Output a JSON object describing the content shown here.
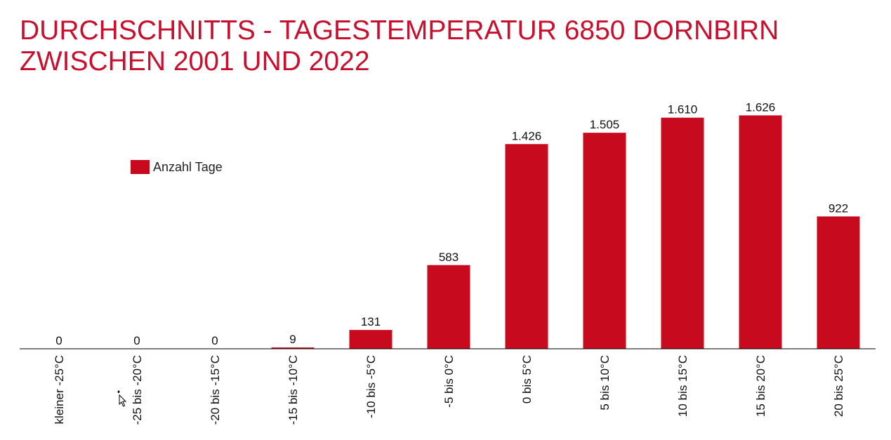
{
  "title": {
    "line1": "DURCHSCHNITTS - TAGESTEMPERATUR 6850 DORNBIRN",
    "line2": "ZWISCHEN 2001 UND 2022"
  },
  "colors": {
    "accent": "#c8102e",
    "bar": "#c80a1e",
    "axis": "#000000",
    "text": "#111111"
  },
  "chart_data": {
    "type": "bar",
    "title": "DURCHSCHNITTS - TAGESTEMPERATUR 6850 DORNBIRN ZWISCHEN 2001 UND 2022",
    "categories": [
      "kleiner -25°C",
      "-25 bis -20°C",
      "-20 bis -15°C",
      "-15 bis -10°C",
      "-10 bis -5°C",
      "-5 bis 0°C",
      "0 bis 5°C",
      "5 bis 10°C",
      "10 bis 15°C",
      "15 bis 20°C",
      "20 bis 25°C"
    ],
    "series": [
      {
        "name": "Anzahl Tage",
        "values": [
          0,
          0,
          0,
          9,
          131,
          583,
          1426,
          1505,
          1610,
          1626,
          922
        ]
      }
    ],
    "data_labels": [
      "0",
      "0",
      "0",
      "9",
      "131",
      "583",
      "1.426",
      "1.505",
      "1.610",
      "1.626",
      "922"
    ],
    "legend": {
      "position": "top-left",
      "entries": [
        "Anzahl Tage"
      ]
    },
    "grid": false,
    "ylim": [
      0,
      1760
    ]
  }
}
